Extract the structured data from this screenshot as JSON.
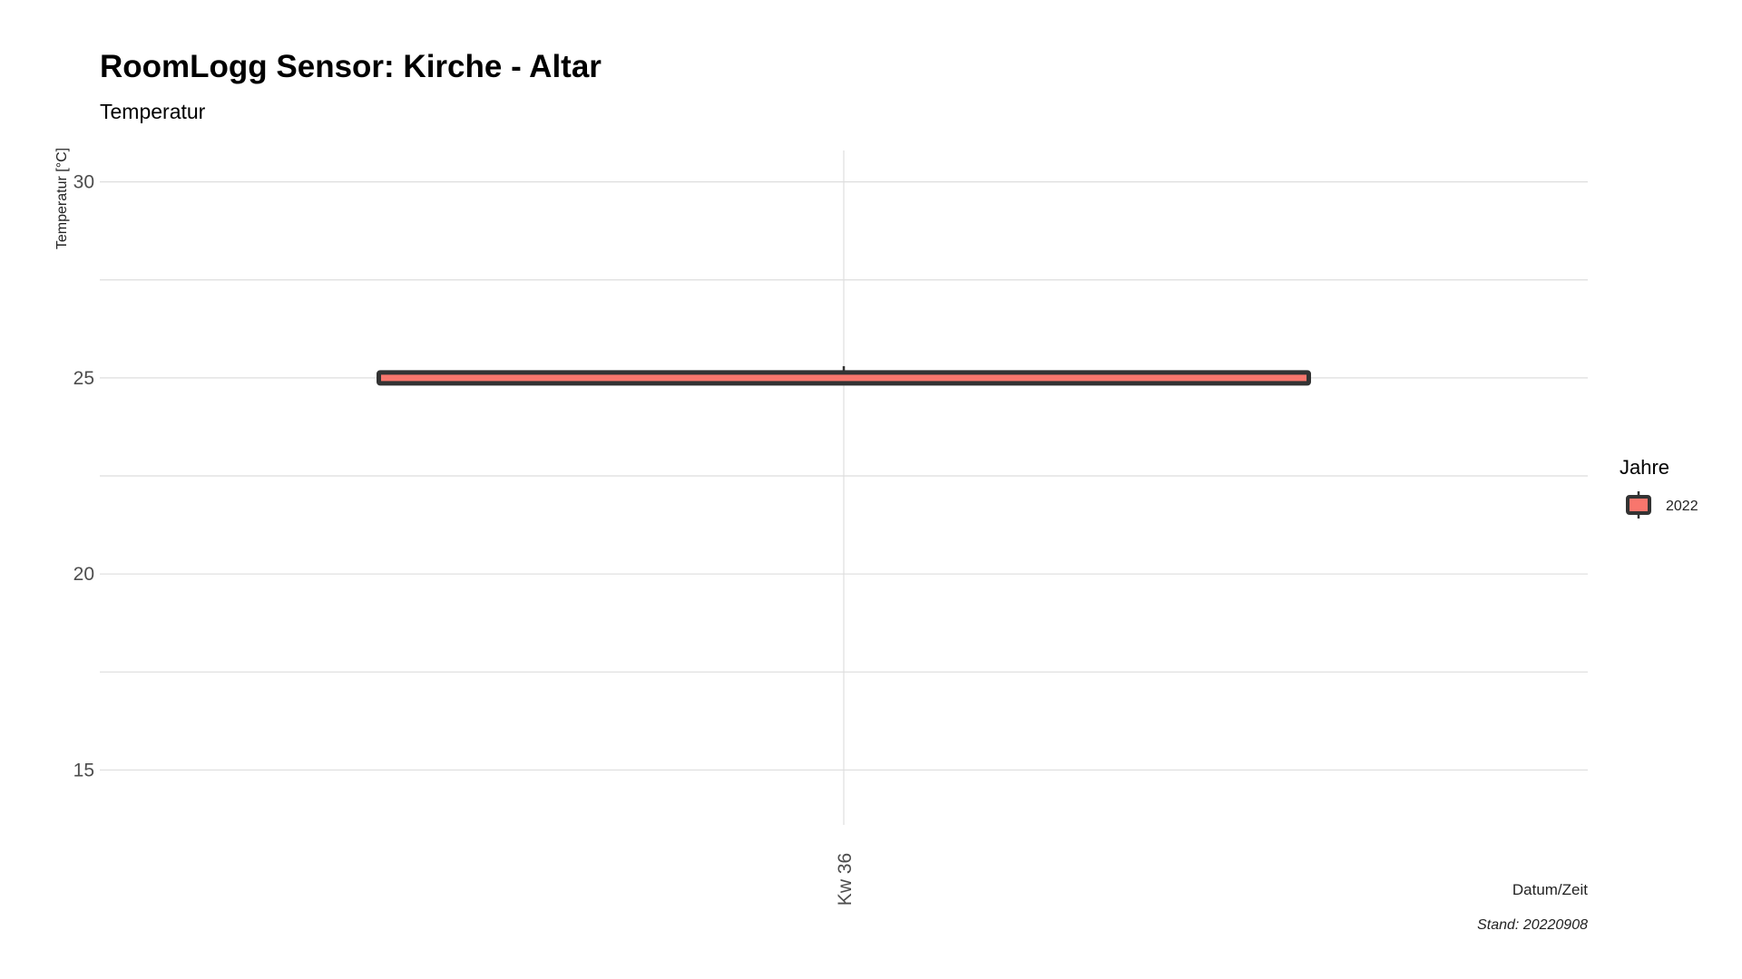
{
  "chart_data": {
    "type": "boxplot",
    "title": "RoomLogg Sensor: Kirche - Altar",
    "subtitle": "Temperatur",
    "xlabel": "Datum/Zeit",
    "ylabel": "Temperatur [°C]",
    "caption": "Stand: 20220908",
    "categories": [
      "Kw 36"
    ],
    "ylim": [
      13.6,
      30.8
    ],
    "yticks": [
      15,
      20,
      25,
      30
    ],
    "grid": true,
    "legend": {
      "title": "Jahre",
      "position": "right",
      "entries": [
        "2022"
      ]
    },
    "series": [
      {
        "name": "2022",
        "color": "#f8766d",
        "box_color": "#333333",
        "boxes": [
          {
            "category": "Kw 36",
            "min": 24.9,
            "q1": 24.9,
            "median": 25.0,
            "q3": 25.1,
            "max": 25.3
          }
        ]
      }
    ]
  }
}
